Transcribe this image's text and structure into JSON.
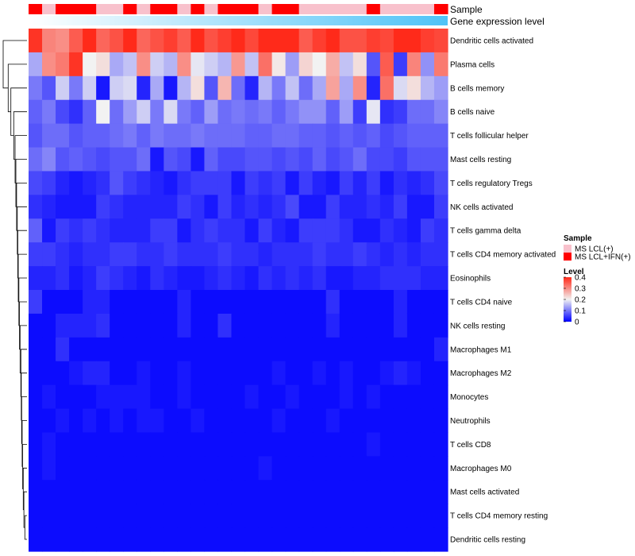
{
  "chart_data": {
    "type": "heatmap",
    "title": "",
    "n_columns": 31,
    "annotation_tracks": [
      {
        "name": "Sample",
        "values": [
          "IFN",
          "LCL",
          "IFN",
          "IFN",
          "IFN",
          "LCL",
          "LCL",
          "IFN",
          "LCL",
          "IFN",
          "IFN",
          "LCL",
          "IFN",
          "LCL",
          "IFN",
          "IFN",
          "IFN",
          "LCL",
          "IFN",
          "IFN",
          "LCL",
          "LCL",
          "LCL",
          "LCL",
          "LCL",
          "IFN",
          "LCL",
          "LCL",
          "LCL",
          "LCL",
          "IFN"
        ]
      },
      {
        "name": "Gene expression level",
        "gradient": [
          "#ffffff",
          "#4fc3f7"
        ]
      }
    ],
    "rows": [
      "Dendritic cells activated",
      "Plasma cells",
      "B cells memory",
      "B cells naive",
      "T cells follicular helper",
      "Mast cells resting",
      "T cells regulatory  Tregs",
      "NK cells activated",
      "T cells gamma delta",
      "T cells CD4 memory activated",
      "Eosinophils",
      "T cells CD4 naive",
      "NK cells resting",
      "Macrophages M1",
      "Macrophages M2",
      "Monocytes",
      "Neutrophils",
      "T cells CD8",
      "Macrophages M0",
      "Mast cells activated",
      "T cells CD4 memory resting",
      "Dendritic cells resting"
    ],
    "values": [
      [
        0.39,
        0.31,
        0.3,
        0.35,
        0.41,
        0.34,
        0.36,
        0.4,
        0.34,
        0.36,
        0.38,
        0.35,
        0.4,
        0.36,
        0.38,
        0.41,
        0.37,
        0.4,
        0.4,
        0.4,
        0.35,
        0.38,
        0.4,
        0.36,
        0.36,
        0.38,
        0.37,
        0.4,
        0.4,
        0.38,
        0.37
      ],
      [
        0.14,
        0.3,
        0.32,
        0.39,
        0.2,
        0.22,
        0.14,
        0.16,
        0.3,
        0.17,
        0.15,
        0.3,
        0.19,
        0.17,
        0.15,
        0.29,
        0.16,
        0.33,
        0.21,
        0.13,
        0.23,
        0.2,
        0.27,
        0.16,
        0.22,
        0.07,
        0.35,
        0.05,
        0.31,
        0.12,
        0.32
      ],
      [
        0.1,
        0.07,
        0.17,
        0.1,
        0.17,
        0.02,
        0.17,
        0.18,
        0.03,
        0.14,
        0.02,
        0.15,
        0.22,
        0.07,
        0.26,
        0.09,
        0.03,
        0.15,
        0.1,
        0.16,
        0.09,
        0.14,
        0.28,
        0.14,
        0.3,
        0.03,
        0.33,
        0.18,
        0.22,
        0.15,
        0.13
      ],
      [
        0.08,
        0.1,
        0.06,
        0.04,
        0.08,
        0.2,
        0.09,
        0.13,
        0.17,
        0.1,
        0.18,
        0.1,
        0.08,
        0.13,
        0.09,
        0.1,
        0.09,
        0.1,
        0.08,
        0.1,
        0.12,
        0.12,
        0.08,
        0.13,
        0.05,
        0.19,
        0.04,
        0.05,
        0.09,
        0.09,
        0.11
      ],
      [
        0.07,
        0.09,
        0.09,
        0.07,
        0.08,
        0.08,
        0.09,
        0.1,
        0.08,
        0.1,
        0.09,
        0.09,
        0.1,
        0.09,
        0.09,
        0.09,
        0.08,
        0.08,
        0.09,
        0.09,
        0.08,
        0.08,
        0.07,
        0.08,
        0.07,
        0.08,
        0.06,
        0.07,
        0.08,
        0.08,
        0.08
      ],
      [
        0.09,
        0.11,
        0.07,
        0.08,
        0.07,
        0.06,
        0.07,
        0.07,
        0.09,
        0.02,
        0.07,
        0.06,
        0.02,
        0.08,
        0.06,
        0.06,
        0.07,
        0.07,
        0.06,
        0.07,
        0.06,
        0.08,
        0.06,
        0.07,
        0.09,
        0.06,
        0.06,
        0.05,
        0.07,
        0.07,
        0.07
      ],
      [
        0.06,
        0.05,
        0.03,
        0.02,
        0.03,
        0.04,
        0.07,
        0.05,
        0.04,
        0.03,
        0.02,
        0.04,
        0.05,
        0.05,
        0.05,
        0.02,
        0.05,
        0.04,
        0.05,
        0.02,
        0.05,
        0.03,
        0.02,
        0.05,
        0.03,
        0.05,
        0.02,
        0.04,
        0.03,
        0.04,
        0.06
      ],
      [
        0.04,
        0.03,
        0.02,
        0.02,
        0.02,
        0.05,
        0.04,
        0.03,
        0.03,
        0.03,
        0.03,
        0.05,
        0.04,
        0.02,
        0.05,
        0.03,
        0.04,
        0.03,
        0.04,
        0.06,
        0.02,
        0.02,
        0.05,
        0.03,
        0.03,
        0.04,
        0.03,
        0.05,
        0.02,
        0.02,
        0.05
      ],
      [
        0.08,
        0.02,
        0.05,
        0.04,
        0.05,
        0.04,
        0.03,
        0.03,
        0.03,
        0.05,
        0.05,
        0.02,
        0.04,
        0.05,
        0.04,
        0.04,
        0.02,
        0.05,
        0.03,
        0.02,
        0.05,
        0.05,
        0.05,
        0.04,
        0.02,
        0.02,
        0.04,
        0.03,
        0.02,
        0.05,
        0.04
      ],
      [
        0.05,
        0.05,
        0.04,
        0.03,
        0.04,
        0.04,
        0.05,
        0.05,
        0.04,
        0.04,
        0.05,
        0.04,
        0.04,
        0.04,
        0.05,
        0.04,
        0.04,
        0.03,
        0.04,
        0.04,
        0.04,
        0.05,
        0.04,
        0.04,
        0.05,
        0.04,
        0.03,
        0.04,
        0.03,
        0.04,
        0.04
      ],
      [
        0.03,
        0.03,
        0.04,
        0.02,
        0.03,
        0.05,
        0.04,
        0.03,
        0.02,
        0.04,
        0.03,
        0.02,
        0.02,
        0.03,
        0.04,
        0.03,
        0.02,
        0.04,
        0.03,
        0.04,
        0.03,
        0.04,
        0.02,
        0.02,
        0.03,
        0.03,
        0.04,
        0.04,
        0.04,
        0.03,
        0.03
      ],
      [
        0.05,
        0.01,
        0.01,
        0.01,
        0.03,
        0.03,
        0.01,
        0.01,
        0.01,
        0.01,
        0.01,
        0.03,
        0.01,
        0.01,
        0.01,
        0.01,
        0.01,
        0.01,
        0.01,
        0.01,
        0.01,
        0.01,
        0.04,
        0.01,
        0.01,
        0.01,
        0.01,
        0.03,
        0.01,
        0.01,
        0.01
      ],
      [
        0.01,
        0.01,
        0.03,
        0.03,
        0.03,
        0.04,
        0.01,
        0.01,
        0.01,
        0.01,
        0.01,
        0.03,
        0.01,
        0.01,
        0.04,
        0.01,
        0.01,
        0.01,
        0.01,
        0.01,
        0.01,
        0.01,
        0.03,
        0.01,
        0.01,
        0.01,
        0.01,
        0.03,
        0.01,
        0.01,
        0.01
      ],
      [
        0.01,
        0.01,
        0.04,
        0.01,
        0.01,
        0.01,
        0.01,
        0.01,
        0.01,
        0.01,
        0.01,
        0.01,
        0.01,
        0.01,
        0.01,
        0.01,
        0.01,
        0.01,
        0.01,
        0.01,
        0.01,
        0.01,
        0.01,
        0.01,
        0.01,
        0.01,
        0.01,
        0.01,
        0.01,
        0.01,
        0.03
      ],
      [
        0.01,
        0.01,
        0.01,
        0.02,
        0.03,
        0.03,
        0.01,
        0.01,
        0.02,
        0.01,
        0.01,
        0.02,
        0.01,
        0.01,
        0.01,
        0.01,
        0.01,
        0.01,
        0.02,
        0.01,
        0.01,
        0.02,
        0.01,
        0.02,
        0.01,
        0.01,
        0.02,
        0.03,
        0.02,
        0.01,
        0.01
      ],
      [
        0.01,
        0.02,
        0.01,
        0.01,
        0.01,
        0.02,
        0.02,
        0.02,
        0.02,
        0.01,
        0.01,
        0.02,
        0.01,
        0.01,
        0.01,
        0.01,
        0.02,
        0.01,
        0.01,
        0.02,
        0.01,
        0.01,
        0.01,
        0.02,
        0.01,
        0.02,
        0.01,
        0.01,
        0.01,
        0.01,
        0.01
      ],
      [
        0.01,
        0.01,
        0.02,
        0.01,
        0.02,
        0.01,
        0.02,
        0.01,
        0.02,
        0.02,
        0.01,
        0.01,
        0.02,
        0.01,
        0.01,
        0.01,
        0.01,
        0.01,
        0.02,
        0.01,
        0.01,
        0.01,
        0.02,
        0.01,
        0.01,
        0.01,
        0.01,
        0.01,
        0.01,
        0.01,
        0.01
      ],
      [
        0.01,
        0.02,
        0.01,
        0.01,
        0.01,
        0.01,
        0.01,
        0.01,
        0.01,
        0.01,
        0.01,
        0.01,
        0.01,
        0.01,
        0.01,
        0.01,
        0.01,
        0.01,
        0.01,
        0.01,
        0.01,
        0.01,
        0.01,
        0.01,
        0.01,
        0.02,
        0.01,
        0.01,
        0.01,
        0.01,
        0.01
      ],
      [
        0.01,
        0.02,
        0.01,
        0.01,
        0.01,
        0.01,
        0.01,
        0.01,
        0.01,
        0.01,
        0.01,
        0.01,
        0.01,
        0.01,
        0.01,
        0.01,
        0.01,
        0.02,
        0.01,
        0.01,
        0.01,
        0.01,
        0.01,
        0.01,
        0.01,
        0.01,
        0.01,
        0.01,
        0.01,
        0.01,
        0.01
      ],
      [
        0.01,
        0.01,
        0.01,
        0.01,
        0.01,
        0.01,
        0.01,
        0.01,
        0.01,
        0.01,
        0.01,
        0.01,
        0.01,
        0.01,
        0.01,
        0.01,
        0.01,
        0.01,
        0.01,
        0.01,
        0.01,
        0.01,
        0.01,
        0.01,
        0.01,
        0.01,
        0.01,
        0.01,
        0.01,
        0.01,
        0.01
      ],
      [
        0.01,
        0.01,
        0.01,
        0.01,
        0.01,
        0.01,
        0.01,
        0.01,
        0.01,
        0.01,
        0.01,
        0.01,
        0.01,
        0.01,
        0.01,
        0.01,
        0.01,
        0.01,
        0.01,
        0.01,
        0.01,
        0.01,
        0.01,
        0.01,
        0.01,
        0.01,
        0.01,
        0.01,
        0.01,
        0.01,
        0.01
      ],
      [
        0.01,
        0.01,
        0.01,
        0.01,
        0.01,
        0.01,
        0.01,
        0.01,
        0.01,
        0.01,
        0.01,
        0.01,
        0.01,
        0.01,
        0.01,
        0.01,
        0.01,
        0.01,
        0.01,
        0.01,
        0.01,
        0.01,
        0.01,
        0.01,
        0.01,
        0.01,
        0.01,
        0.01,
        0.01,
        0.01,
        0.01
      ]
    ],
    "color_scale": {
      "stops": [
        {
          "value": 0,
          "color": "#0000ff"
        },
        {
          "value": 0.2,
          "color": "#f2f2f2"
        },
        {
          "value": 0.4,
          "color": "#ff2a1a"
        }
      ]
    },
    "legend": {
      "sample_title": "Sample",
      "sample_entries": [
        {
          "key": "LCL",
          "label": "MS LCL(+)",
          "color": "#f8c1cc"
        },
        {
          "key": "IFN",
          "label": "MS LCL+IFN(+)",
          "color": "#ff0000"
        }
      ],
      "level_title": "Level",
      "level_ticks": [
        {
          "value": 0.4,
          "label": "0.4"
        },
        {
          "value": 0.3,
          "label": "0.3"
        },
        {
          "value": 0.2,
          "label": "0.2"
        },
        {
          "value": 0.1,
          "label": "0.1"
        },
        {
          "value": 0,
          "label": "0"
        }
      ]
    },
    "dendrogram": {
      "leaf_rows": 22,
      "merges": [
        [
          20,
          21,
          0.001
        ],
        [
          19,
          -1,
          0.002
        ],
        [
          18,
          -2,
          0.003
        ],
        [
          17,
          -3,
          0.004
        ],
        [
          16,
          -4,
          0.005
        ],
        [
          15,
          -5,
          0.006
        ],
        [
          14,
          -6,
          0.007
        ],
        [
          13,
          -7,
          0.008
        ],
        [
          12,
          -8,
          0.01
        ],
        [
          11,
          -9,
          0.012
        ],
        [
          10,
          -10,
          0.014
        ],
        [
          9,
          -11,
          0.016
        ],
        [
          8,
          -12,
          0.018
        ],
        [
          7,
          -13,
          0.02
        ],
        [
          6,
          -14,
          0.023
        ],
        [
          5,
          -15,
          0.026
        ],
        [
          4,
          -16,
          0.03
        ],
        [
          3,
          -17,
          0.037
        ],
        [
          2,
          -18,
          0.055
        ],
        [
          1,
          -19,
          0.075
        ],
        [
          0,
          -20,
          0.12
        ]
      ]
    }
  }
}
